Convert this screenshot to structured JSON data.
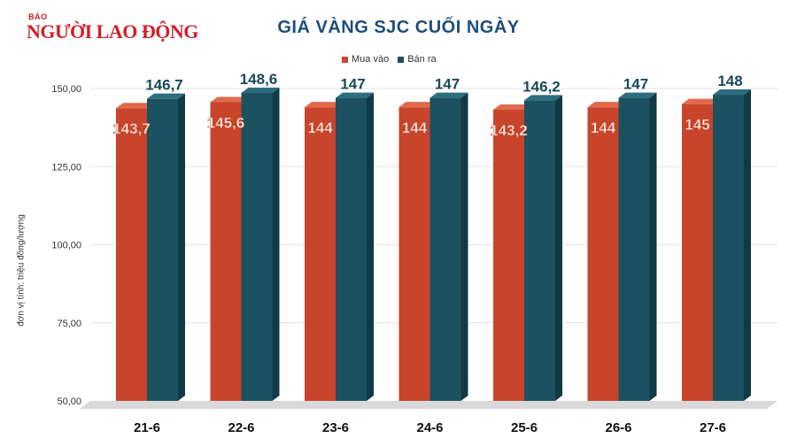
{
  "logo": {
    "small": "BÁO",
    "main": "NGƯỜI LAO ĐỘNG"
  },
  "colors": {
    "buy": "#c8442a",
    "sell": "#1b5160",
    "title": "#1e4d7a"
  },
  "chart_data": {
    "type": "bar",
    "title": "GIÁ VÀNG SJC CUỐI NGÀY",
    "ylabel": "đơn vị tính: triệu đồng/lượng",
    "xlabel": "",
    "categories": [
      "21-6",
      "22-6",
      "23-6",
      "24-6",
      "25-6",
      "26-6",
      "27-6"
    ],
    "series": [
      {
        "name": "Mua vào",
        "values": [
          143.7,
          145.6,
          144,
          144,
          143.2,
          144,
          145
        ],
        "labels": [
          "143,7",
          "145,6",
          "144",
          "144",
          "143,2",
          "144",
          "145"
        ]
      },
      {
        "name": "Bán ra",
        "values": [
          146.7,
          148.6,
          147,
          147,
          146.2,
          147,
          148
        ],
        "labels": [
          "146,7",
          "148,6",
          "147",
          "147",
          "146,2",
          "147",
          "148"
        ]
      }
    ],
    "ylim": [
      50,
      150
    ],
    "yticks": [
      "50,00",
      "75,00",
      "100,00",
      "125,00",
      "150,00"
    ],
    "grid": true,
    "legend": "top-center"
  }
}
